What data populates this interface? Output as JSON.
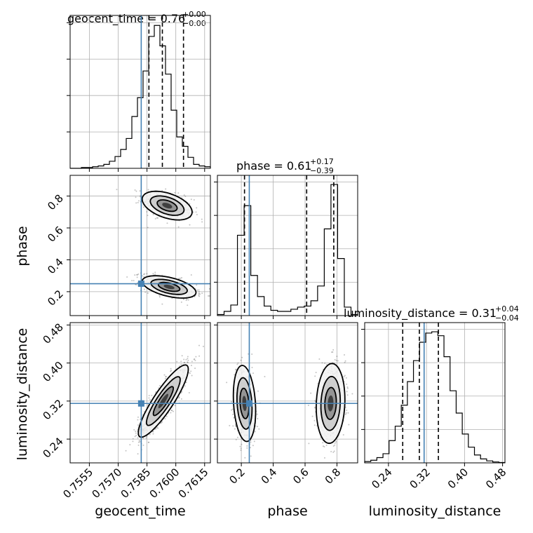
{
  "chart_data": {
    "type": "corner",
    "parameters": [
      "geocent_time",
      "phase",
      "luminosity_distance"
    ],
    "truths": {
      "geocent_time": 0.7582,
      "phase": 0.25,
      "luminosity_distance": 0.315
    },
    "titles": [
      {
        "name": "geocent_time",
        "base": "geocent_time = 0.76",
        "plus": "+0.00",
        "minus": "−0.00"
      },
      {
        "name": "phase",
        "base": "phase = 0.61",
        "plus": "+0.17",
        "minus": "−0.39"
      },
      {
        "name": "luminosity_distance",
        "base": "luminosity_distance = 0.31",
        "plus": "+0.04",
        "minus": "−0.04"
      }
    ],
    "axes": {
      "geocent_time": {
        "range": [
          0.7545,
          0.7618
        ],
        "ticks": [
          "0.7555",
          "0.7570",
          "0.7585",
          "0.7600",
          "0.7615"
        ],
        "label": "geocent_time"
      },
      "phase": {
        "range": [
          0.05,
          0.93
        ],
        "ticks": [
          "0.2",
          "0.4",
          "0.6",
          "0.8"
        ],
        "label": "phase"
      },
      "luminosity_distance": {
        "range": [
          0.19,
          0.485
        ],
        "ticks": [
          "0.24",
          "0.32",
          "0.40",
          "0.48"
        ],
        "label": "luminosity_distance"
      }
    },
    "histograms": {
      "geocent_time": {
        "edges_range": [
          0.7545,
          0.7618
        ],
        "quantiles": [
          0.7586,
          0.7593,
          0.7604
        ],
        "counts": [
          0,
          0,
          0.5,
          0.5,
          1,
          1.5,
          2.5,
          4.5,
          7.5,
          12,
          19,
          33,
          45,
          62,
          84,
          91,
          78,
          60,
          37,
          20,
          14,
          7,
          2.5,
          1.5,
          1
        ]
      },
      "phase": {
        "edges_range": [
          0.05,
          0.93
        ],
        "quantiles": [
          0.22,
          0.61,
          0.78
        ],
        "counts": [
          1,
          4,
          10,
          76,
          104,
          38,
          18,
          9,
          5,
          4,
          4,
          6,
          8,
          9,
          14,
          28,
          82,
          124,
          54,
          8,
          1
        ]
      },
      "luminosity_distance": {
        "edges_range": [
          0.19,
          0.485
        ],
        "quantiles": [
          0.27,
          0.305,
          0.345
        ],
        "counts": [
          1,
          2,
          4,
          7,
          17,
          28,
          44,
          62,
          78,
          92,
          99,
          100,
          97,
          81,
          55,
          38,
          22,
          12,
          6,
          3,
          1.5,
          0.7,
          0.3
        ]
      }
    },
    "joint_2d": [
      {
        "x": "geocent_time",
        "y": "phase"
      },
      {
        "x": "geocent_time",
        "y": "luminosity_distance"
      },
      {
        "x": "phase",
        "y": "luminosity_distance"
      }
    ],
    "grid": true,
    "legend": "none"
  }
}
